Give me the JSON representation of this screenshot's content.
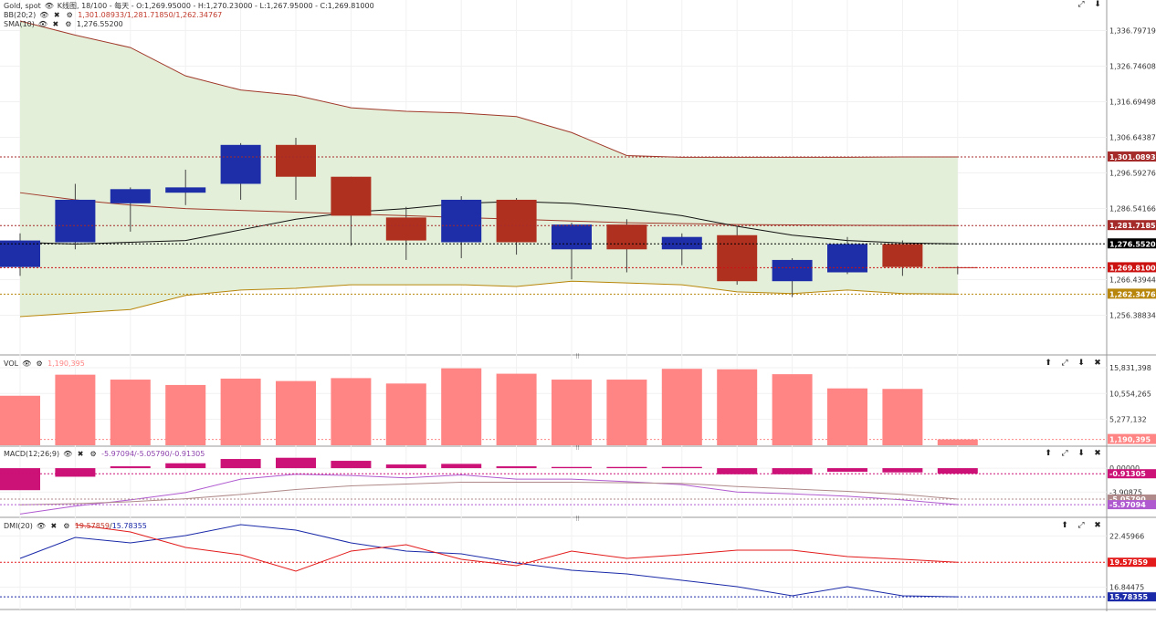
{
  "header": {
    "symbol": "Gold, spot",
    "ohlc": "K线图, 18/100 - 每天 - O:1,269.95000 - H:1,270.23000 - L:1,267.95000 - C:1,269.81000",
    "bb_label": "BB(20;2)",
    "bb_values": "1,301.08933/1,281.71850/1,262.34767",
    "sma_label": "SMA(10)",
    "sma_value": "1,276.55200"
  },
  "price_axis": {
    "ticks": [
      "1,336.79719",
      "1,326.74608",
      "1,316.69498",
      "1,306.64387",
      "1,296.59276",
      "1,286.54166",
      "1,266.43944",
      "1,256.38834"
    ],
    "tags": [
      {
        "text": "1,301.08933",
        "color": "#a52a2a",
        "value": 1301.08933
      },
      {
        "text": "1,281.71850",
        "color": "#a52a2a",
        "value": 1281.7185
      },
      {
        "text": "1,276.55200",
        "color": "#000000",
        "value": 1276.552
      },
      {
        "text": "1,269.81000",
        "color": "#cc1111",
        "value": 1269.81
      },
      {
        "text": "1,262.34767",
        "color": "#b8860b",
        "value": 1262.34767
      }
    ]
  },
  "chart_data": [
    {
      "type": "candlestick",
      "ylim": [
        1251.36,
        1341.82
      ],
      "candles": [
        {
          "o": 1270.0,
          "h": 1279.5,
          "l": 1267.5,
          "c": 1277.5
        },
        {
          "o": 1277.0,
          "h": 1293.5,
          "l": 1275.0,
          "c": 1289.0
        },
        {
          "o": 1288.0,
          "h": 1292.5,
          "l": 1280.0,
          "c": 1292.0
        },
        {
          "o": 1291.0,
          "h": 1297.5,
          "l": 1287.5,
          "c": 1292.5
        },
        {
          "o": 1293.5,
          "h": 1305.0,
          "l": 1289.0,
          "c": 1304.5
        },
        {
          "o": 1304.5,
          "h": 1306.5,
          "l": 1289.0,
          "c": 1295.5
        },
        {
          "o": 1295.5,
          "h": 1295.5,
          "l": 1276.0,
          "c": 1284.5
        },
        {
          "o": 1284.0,
          "h": 1287.0,
          "l": 1272.0,
          "c": 1277.5
        },
        {
          "o": 1277.0,
          "h": 1290.0,
          "l": 1272.5,
          "c": 1289.0
        },
        {
          "o": 1289.0,
          "h": 1289.5,
          "l": 1273.5,
          "c": 1277.0
        },
        {
          "o": 1275.0,
          "h": 1282.5,
          "l": 1266.5,
          "c": 1282.0
        },
        {
          "o": 1282.0,
          "h": 1283.5,
          "l": 1268.5,
          "c": 1275.0
        },
        {
          "o": 1275.0,
          "h": 1279.5,
          "l": 1270.5,
          "c": 1278.5
        },
        {
          "o": 1279.0,
          "h": 1281.5,
          "l": 1265.0,
          "c": 1266.0
        },
        {
          "o": 1266.0,
          "h": 1272.5,
          "l": 1261.5,
          "c": 1272.0
        },
        {
          "o": 1268.5,
          "h": 1278.5,
          "l": 1268.0,
          "c": 1276.5
        },
        {
          "o": 1276.5,
          "h": 1277.5,
          "l": 1267.5,
          "c": 1270.0
        },
        {
          "o": 1269.95,
          "h": 1270.23,
          "l": 1267.95,
          "c": 1269.81
        }
      ],
      "bb_upper": [
        1339.5,
        1335.5,
        1332.0,
        1324.0,
        1320.0,
        1318.5,
        1315.0,
        1314.0,
        1313.5,
        1312.5,
        1308.0,
        1301.5,
        1301.0,
        1301.0,
        1301.0,
        1301.0,
        1301.1,
        1301.09
      ],
      "bb_mid": [
        1291.0,
        1289.0,
        1287.5,
        1286.5,
        1286.0,
        1285.5,
        1285.0,
        1284.5,
        1284.0,
        1283.5,
        1283.0,
        1282.5,
        1282.3,
        1282.0,
        1281.9,
        1281.8,
        1281.75,
        1281.72
      ],
      "bb_lower": [
        1256.0,
        1257.0,
        1258.0,
        1262.0,
        1263.5,
        1264.0,
        1265.0,
        1265.0,
        1265.0,
        1264.5,
        1266.0,
        1265.5,
        1265.0,
        1263.0,
        1262.5,
        1263.5,
        1262.5,
        1262.35
      ],
      "sma": [
        1277.0,
        1276.5,
        1277.0,
        1277.5,
        1280.5,
        1283.5,
        1285.5,
        1286.5,
        1288.0,
        1288.5,
        1288.0,
        1286.5,
        1284.5,
        1281.5,
        1279.0,
        1277.5,
        1276.8,
        1276.55
      ]
    },
    {
      "type": "bar",
      "title": "VOL",
      "ylim": [
        0,
        17500000
      ],
      "values": [
        10100000,
        14400000,
        13400000,
        12300000,
        13600000,
        13100000,
        13700000,
        12600000,
        15700000,
        14600000,
        13400000,
        13400000,
        15600000,
        15500000,
        14500000,
        11600000,
        11500000,
        1190395
      ]
    },
    {
      "type": "macd",
      "ylim": [
        -7.6,
        3.0
      ],
      "hist": [
        -3.6,
        -1.4,
        0.3,
        0.8,
        1.5,
        1.7,
        1.2,
        0.6,
        0.7,
        0.3,
        0.2,
        0.2,
        0.2,
        -1.0,
        -1.0,
        -0.6,
        -0.7,
        -0.91305
      ],
      "macd": [
        -7.5,
        -6.2,
        -5.2,
        -4.0,
        -1.8,
        -1.0,
        -1.2,
        -1.6,
        -1.1,
        -1.8,
        -1.8,
        -2.2,
        -2.7,
        -3.9,
        -4.2,
        -4.6,
        -5.2,
        -5.97094
      ],
      "signal": [
        -6.0,
        -5.8,
        -5.5,
        -5.0,
        -4.3,
        -3.5,
        -2.9,
        -2.6,
        -2.3,
        -2.3,
        -2.3,
        -2.4,
        -2.5,
        -3.0,
        -3.4,
        -3.8,
        -4.3,
        -5.0579
      ]
    },
    {
      "type": "dmi",
      "ylim": [
        14.8,
        24.0
      ],
      "plus_di": [
        20.0,
        22.3,
        21.7,
        22.5,
        23.7,
        23.1,
        21.7,
        20.8,
        20.5,
        19.5,
        18.7,
        18.3,
        17.6,
        16.9,
        15.9,
        16.9,
        15.9,
        15.78355
      ],
      "minus_di": [
        null,
        23.7,
        22.9,
        21.2,
        20.4,
        18.6,
        20.8,
        21.5,
        19.9,
        19.2,
        20.8,
        20.0,
        20.4,
        20.9,
        20.9,
        20.2,
        19.9,
        19.57859
      ]
    }
  ],
  "vol_panel": {
    "label": "VOL",
    "value": "1,190,395",
    "ticks": [
      "15,831,398",
      "10,554,265",
      "5,277,132"
    ],
    "tag": "1,190,395"
  },
  "macd_panel": {
    "label": "MACD(12;26;9)",
    "values": "-5.97094/-5.05790/-0.91305",
    "ticks": [
      "0.00000",
      "-3.90875"
    ],
    "tags": [
      {
        "text": "-0.91305",
        "color": "#cc1177"
      },
      {
        "text": "-5.05790",
        "color": "#b08a8a"
      },
      {
        "text": "-5.97094",
        "color": "#b05ad0"
      }
    ]
  },
  "dmi_panel": {
    "label": "DMI(20)",
    "values_red": "19.57859",
    "values_blue": "15.78355",
    "ticks": [
      "22.45966",
      "16.84475"
    ],
    "tags": [
      {
        "text": "19.57859",
        "color": "#e31b1b"
      },
      {
        "text": "15.78355",
        "color": "#1a2aa8"
      }
    ]
  },
  "colors": {
    "bull": "#1e2ea8",
    "bear": "#b03020",
    "bb_fill": "#e3efd9",
    "volume": "#ff8585",
    "macd_hist": "#cc1177"
  }
}
